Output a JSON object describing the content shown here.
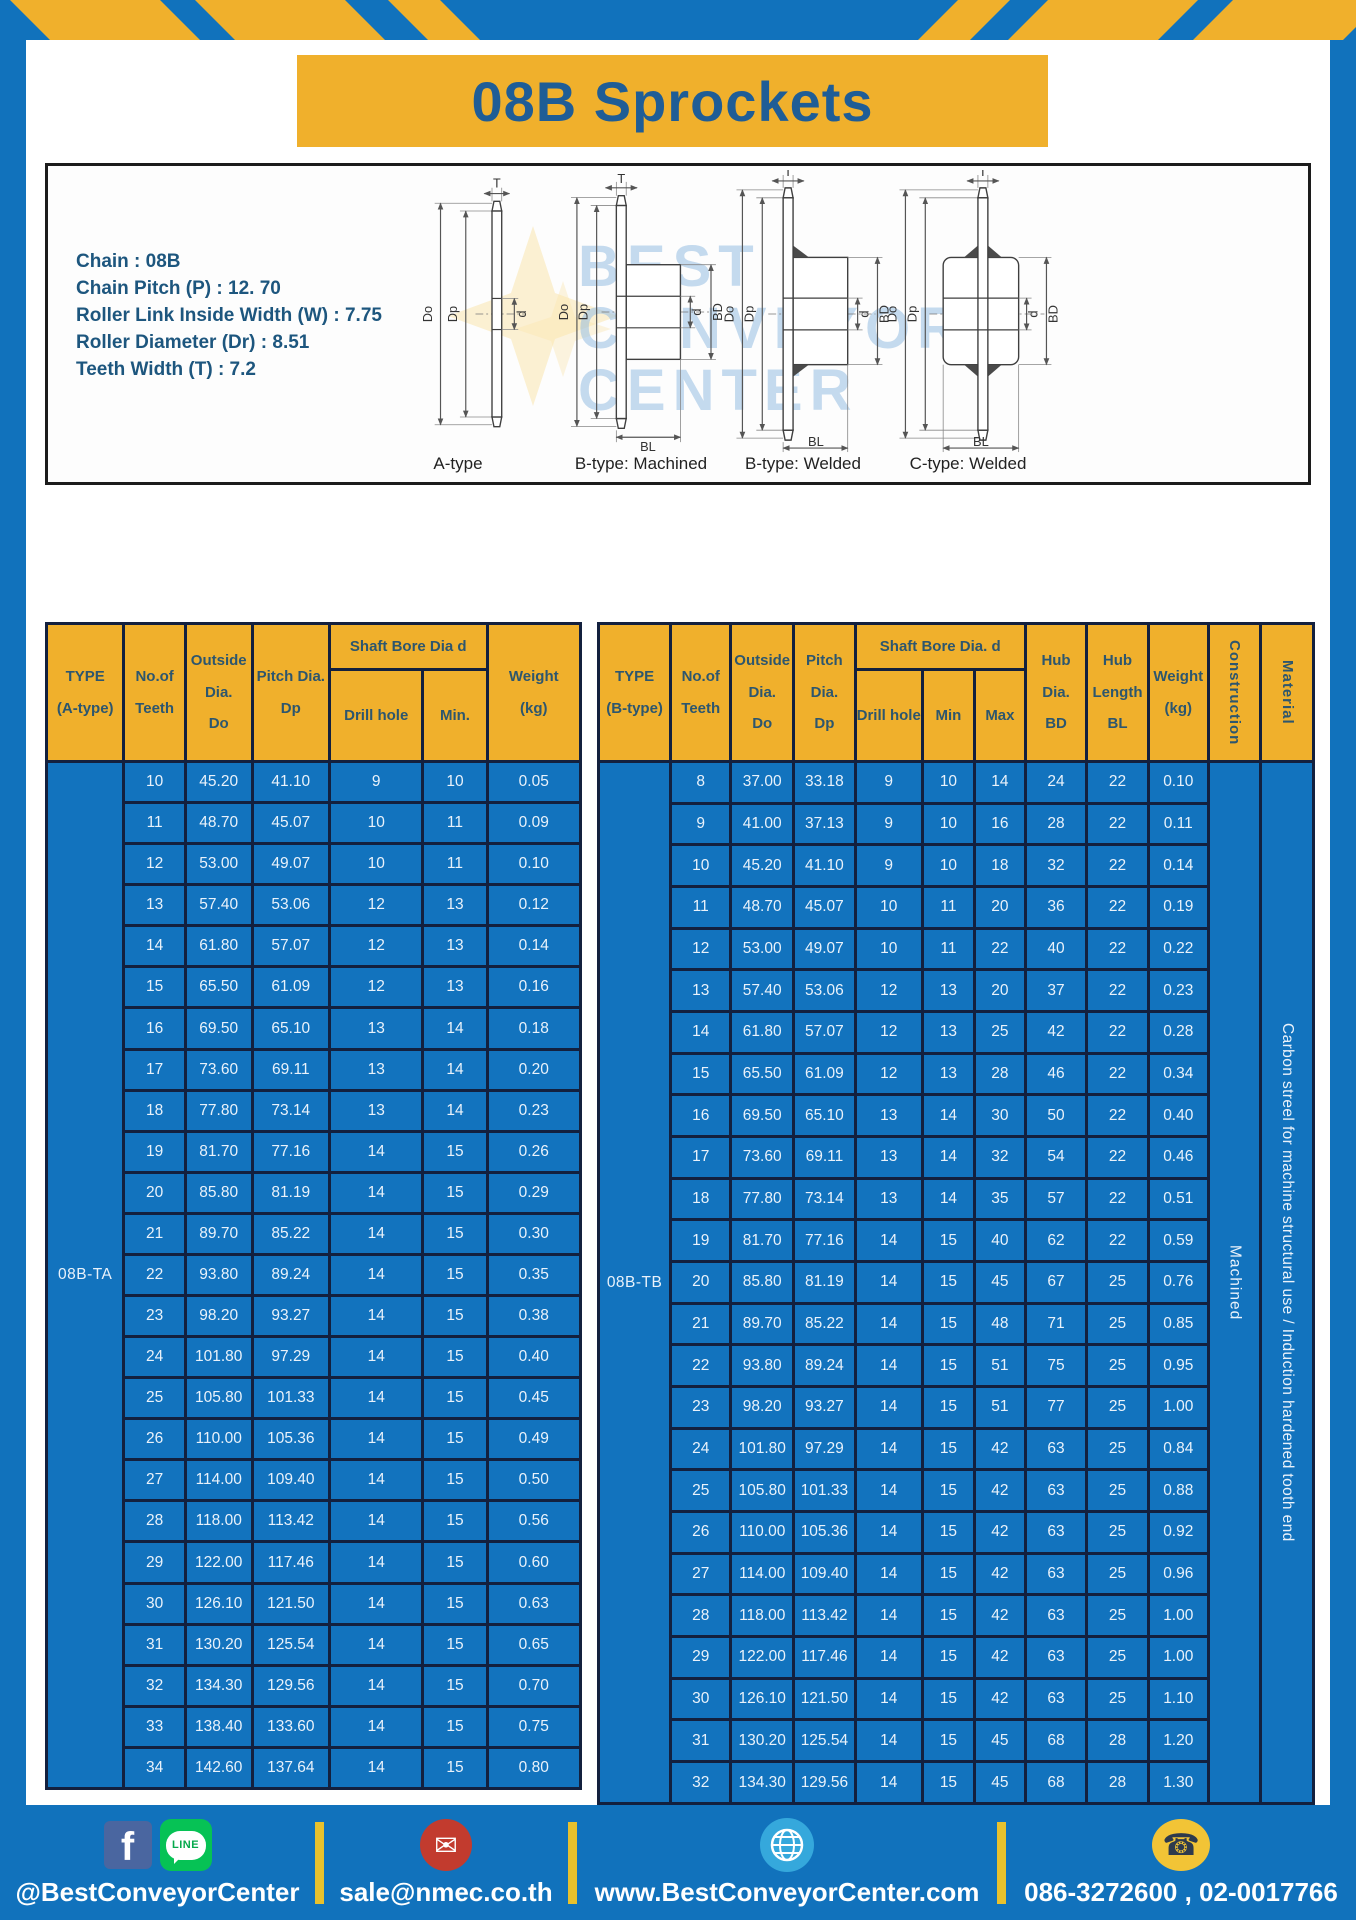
{
  "colors": {
    "primary_blue": "#1172BC",
    "accent_yellow": "#F0B02C",
    "border_navy": "#13203E",
    "title_text": "#1F5D96",
    "header_text": "#2D566E"
  },
  "title": "08B Sprockets",
  "specs": {
    "lines": "Chain : 08B\nChain Pitch (P) : 12. 70\nRoller Link Inside Width (W) : 7.75\nRoller Diameter (Dr) : 8.51\nTeeth Width (T) : 7.2"
  },
  "diagram": {
    "watermark": {
      "l1": "BEST",
      "l2": "CONVEYOR",
      "l3": "CENTER"
    },
    "dims": {
      "t": "T",
      "do": "Do",
      "dp": "Dp",
      "d": "d",
      "bd": "BD",
      "bl": "BL"
    },
    "type_labels": {
      "a": "A-type",
      "b_machined": "B-type: Machined",
      "b_welded": "B-type: Welded",
      "c_welded": "C-type: Welded"
    }
  },
  "table_a": {
    "headers": {
      "type": "TYPE\n(A-type)",
      "teeth": "No.of\nTeeth",
      "outside": "Outside\nDia.\nDo",
      "pitch": "Pitch Dia.\nDp",
      "shaft_bore": "Shaft Bore Dia d",
      "drill_hole": "Drill hole",
      "min": "Min.",
      "weight": "Weight\n(kg)"
    },
    "type_label": "08B-TA",
    "rows": [
      [
        "10",
        "45.20",
        "41.10",
        "9",
        "10",
        "0.05"
      ],
      [
        "11",
        "48.70",
        "45.07",
        "10",
        "11",
        "0.09"
      ],
      [
        "12",
        "53.00",
        "49.07",
        "10",
        "11",
        "0.10"
      ],
      [
        "13",
        "57.40",
        "53.06",
        "12",
        "13",
        "0.12"
      ],
      [
        "14",
        "61.80",
        "57.07",
        "12",
        "13",
        "0.14"
      ],
      [
        "15",
        "65.50",
        "61.09",
        "12",
        "13",
        "0.16"
      ],
      [
        "16",
        "69.50",
        "65.10",
        "13",
        "14",
        "0.18"
      ],
      [
        "17",
        "73.60",
        "69.11",
        "13",
        "14",
        "0.20"
      ],
      [
        "18",
        "77.80",
        "73.14",
        "13",
        "14",
        "0.23"
      ],
      [
        "19",
        "81.70",
        "77.16",
        "14",
        "15",
        "0.26"
      ],
      [
        "20",
        "85.80",
        "81.19",
        "14",
        "15",
        "0.29"
      ],
      [
        "21",
        "89.70",
        "85.22",
        "14",
        "15",
        "0.30"
      ],
      [
        "22",
        "93.80",
        "89.24",
        "14",
        "15",
        "0.35"
      ],
      [
        "23",
        "98.20",
        "93.27",
        "14",
        "15",
        "0.38"
      ],
      [
        "24",
        "101.80",
        "97.29",
        "14",
        "15",
        "0.40"
      ],
      [
        "25",
        "105.80",
        "101.33",
        "14",
        "15",
        "0.45"
      ],
      [
        "26",
        "110.00",
        "105.36",
        "14",
        "15",
        "0.49"
      ],
      [
        "27",
        "114.00",
        "109.40",
        "14",
        "15",
        "0.50"
      ],
      [
        "28",
        "118.00",
        "113.42",
        "14",
        "15",
        "0.56"
      ],
      [
        "29",
        "122.00",
        "117.46",
        "14",
        "15",
        "0.60"
      ],
      [
        "30",
        "126.10",
        "121.50",
        "14",
        "15",
        "0.63"
      ],
      [
        "31",
        "130.20",
        "125.54",
        "14",
        "15",
        "0.65"
      ],
      [
        "32",
        "134.30",
        "129.56",
        "14",
        "15",
        "0.70"
      ],
      [
        "33",
        "138.40",
        "133.60",
        "14",
        "15",
        "0.75"
      ],
      [
        "34",
        "142.60",
        "137.64",
        "14",
        "15",
        "0.80"
      ]
    ]
  },
  "table_b": {
    "headers": {
      "type": "TYPE\n(B-type)",
      "teeth": "No.of\nTeeth",
      "outside": "Outside\nDia.\nDo",
      "pitch": "Pitch\nDia.\nDp",
      "shaft_bore": "Shaft Bore Dia. d",
      "drill_hole": "Drill hole",
      "min": "Min",
      "max": "Max",
      "hub_dia": "Hub\nDia.\nBD",
      "hub_len": "Hub\nLength\nBL",
      "weight": "Weight\n(kg)",
      "construction": "Construction",
      "material": "Material"
    },
    "type_label": "08B-TB",
    "construction_value": "Machined",
    "material_value": "Carbon streel for machine structural use / Induction hardened tooth end",
    "rows": [
      [
        "8",
        "37.00",
        "33.18",
        "9",
        "10",
        "14",
        "24",
        "22",
        "0.10"
      ],
      [
        "9",
        "41.00",
        "37.13",
        "9",
        "10",
        "16",
        "28",
        "22",
        "0.11"
      ],
      [
        "10",
        "45.20",
        "41.10",
        "9",
        "10",
        "18",
        "32",
        "22",
        "0.14"
      ],
      [
        "11",
        "48.70",
        "45.07",
        "10",
        "11",
        "20",
        "36",
        "22",
        "0.19"
      ],
      [
        "12",
        "53.00",
        "49.07",
        "10",
        "11",
        "22",
        "40",
        "22",
        "0.22"
      ],
      [
        "13",
        "57.40",
        "53.06",
        "12",
        "13",
        "20",
        "37",
        "22",
        "0.23"
      ],
      [
        "14",
        "61.80",
        "57.07",
        "12",
        "13",
        "25",
        "42",
        "22",
        "0.28"
      ],
      [
        "15",
        "65.50",
        "61.09",
        "12",
        "13",
        "28",
        "46",
        "22",
        "0.34"
      ],
      [
        "16",
        "69.50",
        "65.10",
        "13",
        "14",
        "30",
        "50",
        "22",
        "0.40"
      ],
      [
        "17",
        "73.60",
        "69.11",
        "13",
        "14",
        "32",
        "54",
        "22",
        "0.46"
      ],
      [
        "18",
        "77.80",
        "73.14",
        "13",
        "14",
        "35",
        "57",
        "22",
        "0.51"
      ],
      [
        "19",
        "81.70",
        "77.16",
        "14",
        "15",
        "40",
        "62",
        "22",
        "0.59"
      ],
      [
        "20",
        "85.80",
        "81.19",
        "14",
        "15",
        "45",
        "67",
        "25",
        "0.76"
      ],
      [
        "21",
        "89.70",
        "85.22",
        "14",
        "15",
        "48",
        "71",
        "25",
        "0.85"
      ],
      [
        "22",
        "93.80",
        "89.24",
        "14",
        "15",
        "51",
        "75",
        "25",
        "0.95"
      ],
      [
        "23",
        "98.20",
        "93.27",
        "14",
        "15",
        "51",
        "77",
        "25",
        "1.00"
      ],
      [
        "24",
        "101.80",
        "97.29",
        "14",
        "15",
        "42",
        "63",
        "25",
        "0.84"
      ],
      [
        "25",
        "105.80",
        "101.33",
        "14",
        "15",
        "42",
        "63",
        "25",
        "0.88"
      ],
      [
        "26",
        "110.00",
        "105.36",
        "14",
        "15",
        "42",
        "63",
        "25",
        "0.92"
      ],
      [
        "27",
        "114.00",
        "109.40",
        "14",
        "15",
        "42",
        "63",
        "25",
        "0.96"
      ],
      [
        "28",
        "118.00",
        "113.42",
        "14",
        "15",
        "42",
        "63",
        "25",
        "1.00"
      ],
      [
        "29",
        "122.00",
        "117.46",
        "14",
        "15",
        "42",
        "63",
        "25",
        "1.00"
      ],
      [
        "30",
        "126.10",
        "121.50",
        "14",
        "15",
        "42",
        "63",
        "25",
        "1.10"
      ],
      [
        "31",
        "130.20",
        "125.54",
        "14",
        "15",
        "45",
        "68",
        "28",
        "1.20"
      ],
      [
        "32",
        "134.30",
        "129.56",
        "14",
        "15",
        "45",
        "68",
        "28",
        "1.30"
      ]
    ]
  },
  "footer": {
    "facebook_letter": "f",
    "line_label": "LINE",
    "social_handle": "@BestConveyorCenter",
    "email": "sale@nmec.co.th",
    "website": "www.BestConveyorCenter.com",
    "phone": "086-3272600 , 02-0017766"
  }
}
